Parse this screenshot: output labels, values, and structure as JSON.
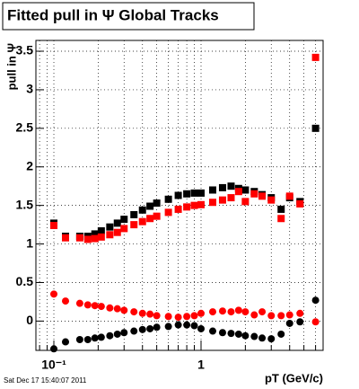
{
  "chart_data": {
    "type": "scatter",
    "title": "Fitted pull in  Ψ   Global Tracks",
    "x_label": "pT (GeV/c)",
    "y_label": "pull in Ψ",
    "footer": "Sat Dec 17 15:40:07 2011",
    "x_log": true,
    "grid": true,
    "xlim": [
      0.0755,
      6.75
    ],
    "ylim": [
      -0.38,
      3.64
    ],
    "xticks": [
      {
        "value": 0.1,
        "label": "10⁻¹"
      },
      1
    ],
    "x_minor_ticks": [
      0.08,
      0.09,
      0.2,
      0.3,
      0.4,
      0.5,
      0.6,
      0.7,
      0.8,
      0.9,
      2,
      3,
      4,
      5,
      6
    ],
    "yticks": [
      0,
      0.5,
      1,
      1.5,
      2,
      2.5,
      3,
      3.5
    ],
    "x": [
      0.1,
      0.12,
      0.15,
      0.17,
      0.19,
      0.21,
      0.24,
      0.27,
      0.3,
      0.35,
      0.4,
      0.45,
      0.5,
      0.6,
      0.7,
      0.8,
      0.9,
      1.0,
      1.2,
      1.4,
      1.6,
      1.8,
      2.0,
      2.3,
      2.6,
      3.0,
      3.5,
      4.0,
      4.7,
      6.0
    ],
    "series": [
      {
        "color": "#000000",
        "marker": "square",
        "values": [
          1.27,
          1.1,
          1.1,
          1.1,
          1.13,
          1.17,
          1.22,
          1.27,
          1.32,
          1.38,
          1.44,
          1.49,
          1.53,
          1.58,
          1.63,
          1.65,
          1.66,
          1.66,
          1.7,
          1.73,
          1.75,
          1.72,
          1.7,
          1.68,
          1.64,
          1.6,
          1.45,
          1.6,
          1.55,
          2.5
        ]
      },
      {
        "color": "#ff0000",
        "marker": "square",
        "values": [
          1.24,
          1.08,
          1.08,
          1.06,
          1.07,
          1.09,
          1.12,
          1.15,
          1.2,
          1.25,
          1.29,
          1.33,
          1.36,
          1.41,
          1.45,
          1.48,
          1.5,
          1.51,
          1.54,
          1.57,
          1.6,
          1.68,
          1.55,
          1.65,
          1.62,
          1.57,
          1.33,
          1.62,
          1.52,
          3.42
        ]
      },
      {
        "color": "#ff0000",
        "marker": "circle",
        "values": [
          0.35,
          0.26,
          0.23,
          0.21,
          0.2,
          0.19,
          0.17,
          0.16,
          0.14,
          0.12,
          0.1,
          0.09,
          0.07,
          0.06,
          0.05,
          0.06,
          0.07,
          0.1,
          0.12,
          0.13,
          0.12,
          0.14,
          0.12,
          0.08,
          0.12,
          0.07,
          0.07,
          0.08,
          0.1,
          -0.01
        ]
      },
      {
        "color": "#000000",
        "marker": "circle",
        "values": [
          -0.36,
          -0.27,
          -0.24,
          -0.24,
          -0.22,
          -0.21,
          -0.19,
          -0.17,
          -0.15,
          -0.13,
          -0.11,
          -0.1,
          -0.08,
          -0.07,
          -0.05,
          -0.05,
          -0.06,
          -0.1,
          -0.13,
          -0.15,
          -0.16,
          -0.17,
          -0.19,
          -0.2,
          -0.22,
          -0.23,
          -0.17,
          -0.03,
          -0.01,
          0.27
        ]
      }
    ]
  }
}
